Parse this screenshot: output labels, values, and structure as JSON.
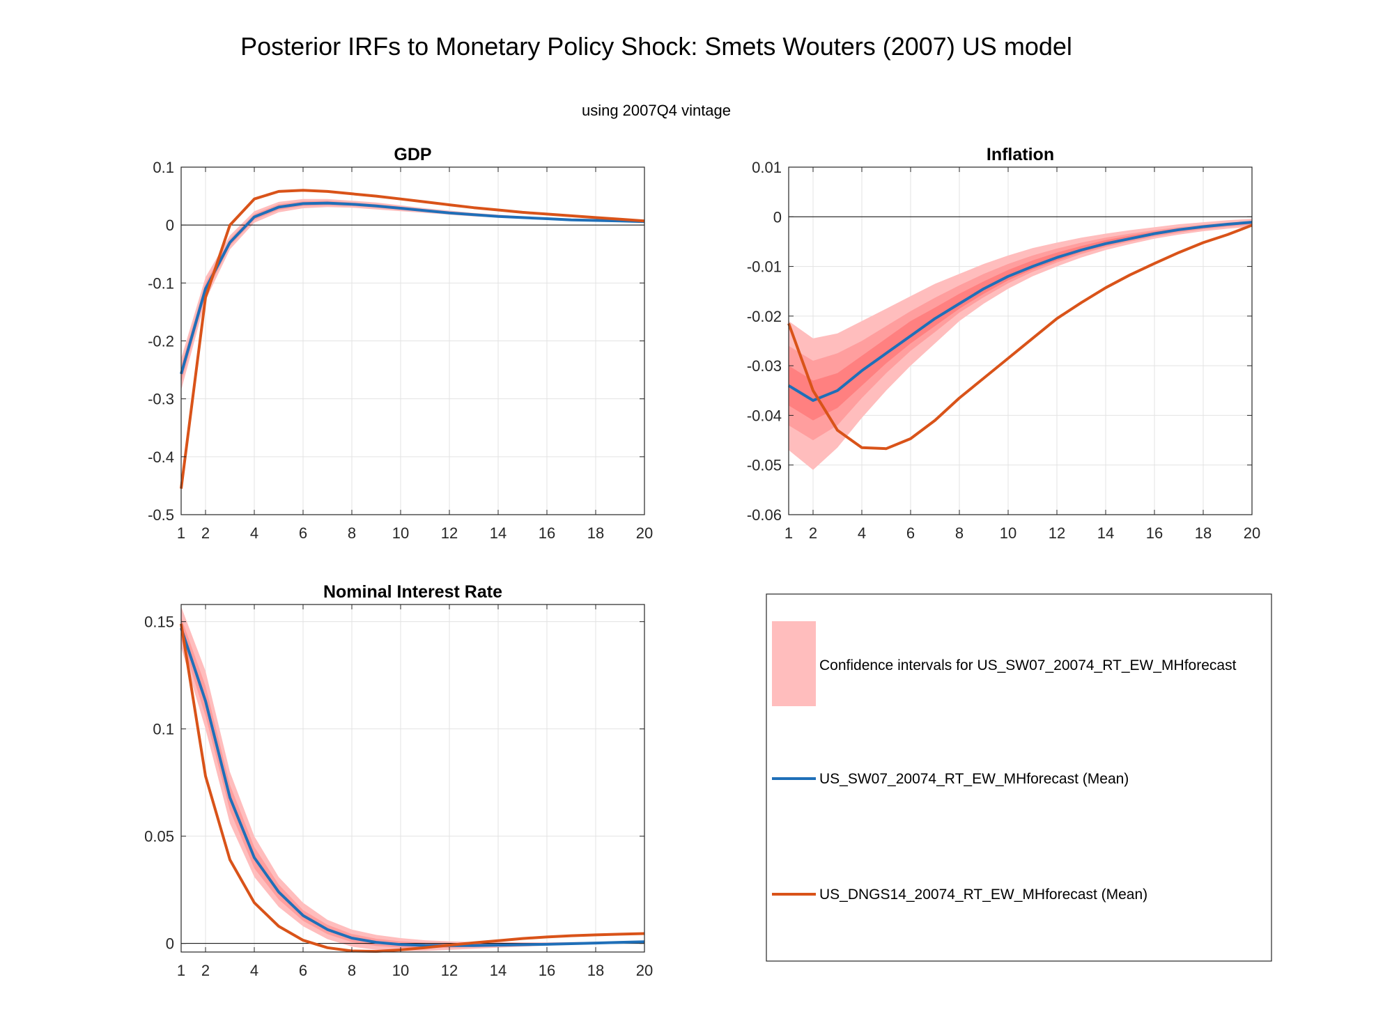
{
  "title": "Posterior IRFs to Monetary Policy Shock: Smets Wouters (2007) US model",
  "subtitle": "using 2007Q4 vintage",
  "colors": {
    "band_outer": "#FFBDBD",
    "band_mid": "#FF9E9E",
    "band_inner": "#FF8080",
    "blue": "#1F6FB8",
    "orange": "#D95319",
    "grid": "#E3E3E3",
    "axis": "#262626"
  },
  "legend": {
    "band_label": "Confidence intervals for US_SW07_20074_RT_EW_MHforecast",
    "blue_label": "US_SW07_20074_RT_EW_MHforecast (Mean)",
    "orange_label": "US_DNGS14_20074_RT_EW_MHforecast (Mean)"
  },
  "chart_data": [
    {
      "type": "line",
      "title": "GDP",
      "x": [
        1,
        2,
        3,
        4,
        5,
        6,
        7,
        8,
        9,
        10,
        11,
        12,
        13,
        14,
        15,
        16,
        17,
        18,
        19,
        20
      ],
      "xticks": [
        1,
        2,
        4,
        6,
        8,
        10,
        12,
        14,
        16,
        18,
        20
      ],
      "xlim": [
        1,
        20
      ],
      "ylim": [
        -0.5,
        0.1
      ],
      "yticks": [
        -0.5,
        -0.4,
        -0.3,
        -0.2,
        -0.1,
        0,
        0.1
      ],
      "ytick_labels": [
        "-0.5",
        "-0.4",
        "-0.3",
        "-0.2",
        "-0.1",
        "0",
        "0.1"
      ],
      "series": [
        {
          "name": "US_SW07_20074_RT_EW_MHforecast (Mean)",
          "values": [
            -0.257,
            -0.11,
            -0.03,
            0.014,
            0.031,
            0.037,
            0.038,
            0.036,
            0.033,
            0.029,
            0.025,
            0.021,
            0.018,
            0.015,
            0.013,
            0.011,
            0.009,
            0.008,
            0.007,
            0.006
          ]
        },
        {
          "name": "US_DNGS14_20074_RT_EW_MHforecast (Mean)",
          "values": [
            -0.455,
            -0.125,
            0.0,
            0.045,
            0.058,
            0.06,
            0.058,
            0.054,
            0.05,
            0.045,
            0.04,
            0.035,
            0.03,
            0.026,
            0.022,
            0.019,
            0.016,
            0.013,
            0.01,
            0.007
          ]
        }
      ],
      "bands": [
        {
          "lower": [
            -0.285,
            -0.13,
            -0.042,
            0.004,
            0.022,
            0.029,
            0.031,
            0.03,
            0.027,
            0.024,
            0.021,
            0.018,
            0.015,
            0.013,
            0.011,
            0.009,
            0.008,
            0.007,
            0.006,
            0.005
          ],
          "upper": [
            -0.23,
            -0.09,
            -0.018,
            0.024,
            0.04,
            0.045,
            0.045,
            0.042,
            0.039,
            0.034,
            0.029,
            0.025,
            0.021,
            0.018,
            0.015,
            0.013,
            0.011,
            0.009,
            0.008,
            0.007
          ]
        },
        {
          "lower": [
            -0.272,
            -0.12,
            -0.036,
            0.009,
            0.026,
            0.033,
            0.034,
            0.033,
            0.03,
            0.026,
            0.023,
            0.019,
            0.016,
            0.014,
            0.012,
            0.01,
            0.0085,
            0.0075,
            0.0065,
            0.0055
          ],
          "upper": [
            -0.243,
            -0.1,
            -0.024,
            0.019,
            0.036,
            0.041,
            0.042,
            0.039,
            0.036,
            0.032,
            0.027,
            0.023,
            0.02,
            0.016,
            0.014,
            0.012,
            0.01,
            0.0085,
            0.0075,
            0.0065
          ]
        }
      ]
    },
    {
      "type": "line",
      "title": "Inflation",
      "x": [
        1,
        2,
        3,
        4,
        5,
        6,
        7,
        8,
        9,
        10,
        11,
        12,
        13,
        14,
        15,
        16,
        17,
        18,
        19,
        20
      ],
      "xticks": [
        1,
        2,
        4,
        6,
        8,
        10,
        12,
        14,
        16,
        18,
        20
      ],
      "xlim": [
        1,
        20
      ],
      "ylim": [
        -0.06,
        0.01
      ],
      "yticks": [
        -0.06,
        -0.05,
        -0.04,
        -0.03,
        -0.02,
        -0.01,
        0,
        0.01
      ],
      "ytick_labels": [
        "-0.06",
        "-0.05",
        "-0.04",
        "-0.03",
        "-0.02",
        "-0.01",
        "0",
        "0.01"
      ],
      "series": [
        {
          "name": "US_SW07_20074_RT_EW_MHforecast (Mean)",
          "values": [
            -0.034,
            -0.037,
            -0.035,
            -0.031,
            -0.0275,
            -0.024,
            -0.0205,
            -0.0175,
            -0.0145,
            -0.012,
            -0.01,
            -0.0082,
            -0.0067,
            -0.0054,
            -0.0044,
            -0.0034,
            -0.0026,
            -0.002,
            -0.0015,
            -0.0011
          ]
        },
        {
          "name": "US_DNGS14_20074_RT_EW_MHforecast (Mean)",
          "values": [
            -0.0215,
            -0.035,
            -0.043,
            -0.0465,
            -0.0467,
            -0.0447,
            -0.041,
            -0.0365,
            -0.0325,
            -0.0285,
            -0.0245,
            -0.0205,
            -0.0173,
            -0.0143,
            -0.0117,
            -0.0094,
            -0.0072,
            -0.0052,
            -0.0036,
            -0.0017
          ]
        }
      ],
      "bands": [
        {
          "lower": [
            -0.047,
            -0.051,
            -0.0465,
            -0.0405,
            -0.035,
            -0.03,
            -0.0255,
            -0.021,
            -0.0175,
            -0.0145,
            -0.012,
            -0.01,
            -0.0082,
            -0.0067,
            -0.0055,
            -0.0044,
            -0.0036,
            -0.0029,
            -0.0024,
            -0.002
          ],
          "upper": [
            -0.021,
            -0.0245,
            -0.0235,
            -0.021,
            -0.0185,
            -0.016,
            -0.0135,
            -0.0115,
            -0.0095,
            -0.0078,
            -0.0063,
            -0.0052,
            -0.0042,
            -0.0034,
            -0.0027,
            -0.0021,
            -0.0015,
            -0.0011,
            -0.0007,
            -0.0004
          ]
        },
        {
          "lower": [
            -0.042,
            -0.045,
            -0.042,
            -0.0365,
            -0.0315,
            -0.027,
            -0.0232,
            -0.0193,
            -0.0162,
            -0.0134,
            -0.0111,
            -0.0092,
            -0.0075,
            -0.0061,
            -0.005,
            -0.004,
            -0.0032,
            -0.0025,
            -0.002,
            -0.0016
          ],
          "upper": [
            -0.026,
            -0.029,
            -0.0275,
            -0.025,
            -0.022,
            -0.019,
            -0.0163,
            -0.0138,
            -0.0115,
            -0.0095,
            -0.0078,
            -0.0064,
            -0.0052,
            -0.0042,
            -0.0034,
            -0.0027,
            -0.0021,
            -0.0016,
            -0.0012,
            -0.0008
          ]
        },
        {
          "lower": [
            -0.038,
            -0.041,
            -0.0385,
            -0.034,
            -0.0295,
            -0.0255,
            -0.022,
            -0.0185,
            -0.0155,
            -0.0128,
            -0.0106,
            -0.0088,
            -0.0071,
            -0.0058,
            -0.0047,
            -0.0037,
            -0.0029,
            -0.0023,
            -0.0018,
            -0.0014
          ],
          "upper": [
            -0.03,
            -0.033,
            -0.0315,
            -0.028,
            -0.0245,
            -0.021,
            -0.0183,
            -0.0155,
            -0.013,
            -0.0107,
            -0.0088,
            -0.0072,
            -0.0059,
            -0.0047,
            -0.0038,
            -0.003,
            -0.0023,
            -0.0018,
            -0.0013,
            -0.0009
          ]
        }
      ]
    },
    {
      "type": "line",
      "title": "Nominal Interest Rate",
      "x": [
        1,
        2,
        3,
        4,
        5,
        6,
        7,
        8,
        9,
        10,
        11,
        12,
        13,
        14,
        15,
        16,
        17,
        18,
        19,
        20
      ],
      "xticks": [
        1,
        2,
        4,
        6,
        8,
        10,
        12,
        14,
        16,
        18,
        20
      ],
      "xlim": [
        1,
        20
      ],
      "ylim": [
        -0.004,
        0.158
      ],
      "yticks": [
        0,
        0.05,
        0.1,
        0.15
      ],
      "ytick_labels": [
        "0",
        "0.05",
        "0.1",
        "0.15"
      ],
      "series": [
        {
          "name": "US_SW07_20074_RT_EW_MHforecast (Mean)",
          "values": [
            0.147,
            0.113,
            0.068,
            0.04,
            0.024,
            0.013,
            0.0065,
            0.0025,
            0.0005,
            -0.0005,
            -0.0009,
            -0.001,
            -0.001,
            -0.0008,
            -0.0006,
            -0.0004,
            -0.0001,
            0.0002,
            0.0005,
            0.0008
          ]
        },
        {
          "name": "US_DNGS14_20074_RT_EW_MHforecast (Mean)",
          "values": [
            0.149,
            0.078,
            0.039,
            0.019,
            0.008,
            0.0015,
            -0.002,
            -0.0035,
            -0.0037,
            -0.003,
            -0.002,
            -0.0008,
            0.0003,
            0.0013,
            0.0023,
            0.003,
            0.0036,
            0.004,
            0.0043,
            0.0046
          ]
        }
      ],
      "bands": [
        {
          "lower": [
            0.138,
            0.1,
            0.056,
            0.031,
            0.017,
            0.008,
            0.002,
            -0.0015,
            -0.003,
            -0.0035,
            -0.0035,
            -0.003,
            -0.0025,
            -0.002,
            -0.0015,
            -0.001,
            -0.0006,
            -0.0003,
            0.0,
            0.0003
          ],
          "upper": [
            0.157,
            0.127,
            0.08,
            0.05,
            0.031,
            0.019,
            0.011,
            0.0065,
            0.004,
            0.0025,
            0.0015,
            0.001,
            0.0007,
            0.0006,
            0.0005,
            0.0005,
            0.0006,
            0.0008,
            0.001,
            0.0013
          ]
        },
        {
          "lower": [
            0.142,
            0.106,
            0.062,
            0.035,
            0.0205,
            0.0105,
            0.0043,
            0.0006,
            -0.0012,
            -0.002,
            -0.0022,
            -0.002,
            -0.0017,
            -0.0014,
            -0.001,
            -0.0007,
            -0.0003,
            0.0,
            0.0003,
            0.0006
          ],
          "upper": [
            0.152,
            0.12,
            0.074,
            0.045,
            0.0275,
            0.0155,
            0.0087,
            0.0044,
            0.0022,
            0.001,
            0.0003,
            0.0,
            -0.0001,
            -0.0001,
            0.0,
            0.0001,
            0.0002,
            0.0004,
            0.0007,
            0.001
          ]
        }
      ]
    }
  ]
}
